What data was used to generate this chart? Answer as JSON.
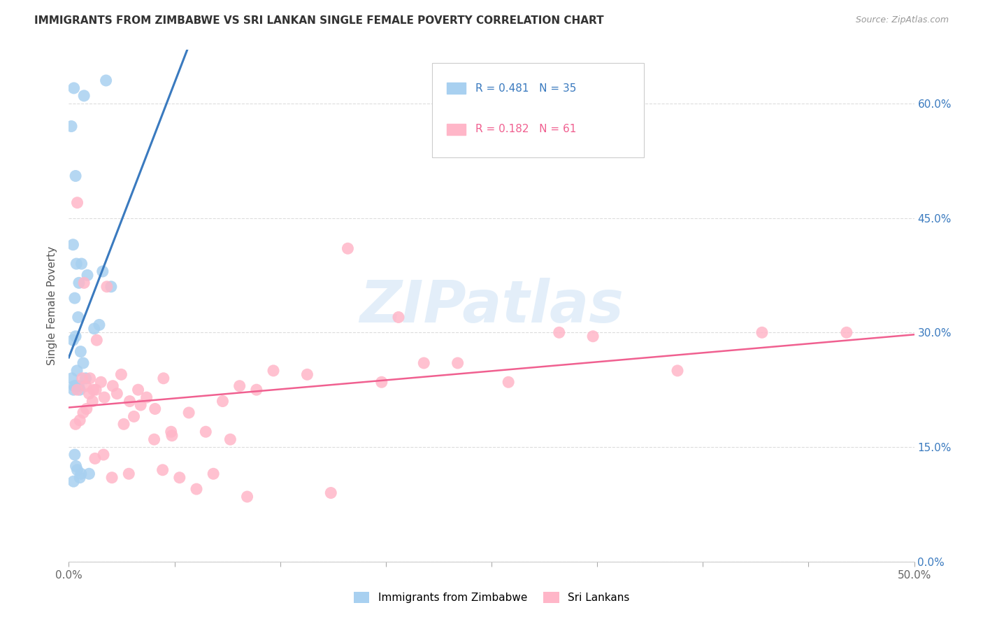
{
  "title": "IMMIGRANTS FROM ZIMBABWE VS SRI LANKAN SINGLE FEMALE POVERTY CORRELATION CHART",
  "source": "Source: ZipAtlas.com",
  "ylabel": "Single Female Poverty",
  "legend_blue_r": "R = 0.481",
  "legend_blue_n": "N = 35",
  "legend_pink_r": "R = 0.182",
  "legend_pink_n": "N = 61",
  "legend_blue_label": "Immigrants from Zimbabwe",
  "legend_pink_label": "Sri Lankans",
  "blue_color": "#a8d0f0",
  "pink_color": "#ffb6c8",
  "blue_line_color": "#3a7abf",
  "pink_line_color": "#f06090",
  "blue_r_color": "#3a7abf",
  "pink_r_color": "#f06090",
  "right_tick_color": "#3a7abf",
  "blue_x": [
    0.15,
    0.3,
    0.9,
    0.4,
    1.1,
    0.25,
    0.45,
    0.6,
    0.75,
    0.35,
    0.25,
    0.4,
    0.55,
    0.7,
    0.85,
    0.18,
    0.32,
    0.48,
    0.65,
    2.0,
    2.5,
    1.5,
    1.8,
    0.28,
    0.42,
    0.58,
    1.0,
    0.35,
    0.5,
    0.72,
    1.2,
    0.28,
    0.42,
    0.65,
    2.2
  ],
  "blue_y": [
    57.0,
    62.0,
    61.0,
    50.5,
    37.5,
    41.5,
    39.0,
    36.5,
    39.0,
    34.5,
    29.0,
    29.5,
    32.0,
    27.5,
    26.0,
    24.0,
    23.0,
    25.0,
    22.5,
    38.0,
    36.0,
    30.5,
    31.0,
    22.5,
    23.0,
    23.0,
    24.0,
    14.0,
    12.0,
    11.5,
    11.5,
    10.5,
    12.5,
    11.0,
    63.0
  ],
  "pink_x": [
    0.5,
    0.8,
    1.0,
    1.2,
    1.4,
    1.6,
    1.9,
    2.1,
    2.6,
    3.1,
    3.6,
    4.1,
    4.6,
    5.1,
    5.6,
    6.1,
    7.1,
    8.1,
    9.1,
    10.1,
    11.1,
    12.1,
    14.1,
    16.5,
    18.5,
    21.0,
    23.0,
    26.0,
    29.0,
    31.0,
    36.0,
    41.0,
    46.0,
    0.4,
    0.65,
    0.85,
    1.05,
    1.25,
    1.45,
    1.65,
    2.25,
    2.85,
    3.25,
    3.85,
    4.25,
    5.55,
    6.55,
    7.55,
    9.55,
    0.5,
    0.9,
    1.55,
    2.05,
    2.55,
    3.55,
    5.05,
    6.05,
    8.55,
    10.55,
    15.5,
    19.5
  ],
  "pink_y": [
    22.5,
    24.0,
    23.0,
    22.0,
    21.0,
    22.5,
    23.5,
    21.5,
    23.0,
    24.5,
    21.0,
    22.5,
    21.5,
    20.0,
    24.0,
    16.5,
    19.5,
    17.0,
    21.0,
    23.0,
    22.5,
    25.0,
    24.5,
    41.0,
    23.5,
    26.0,
    26.0,
    23.5,
    30.0,
    29.5,
    25.0,
    30.0,
    30.0,
    18.0,
    18.5,
    19.5,
    20.0,
    24.0,
    22.5,
    29.0,
    36.0,
    22.0,
    18.0,
    19.0,
    20.5,
    12.0,
    11.0,
    9.5,
    16.0,
    47.0,
    36.5,
    13.5,
    14.0,
    11.0,
    11.5,
    16.0,
    17.0,
    11.5,
    8.5,
    9.0,
    32.0
  ],
  "xlim": [
    0.0,
    50.0
  ],
  "ylim": [
    0.0,
    67.0
  ],
  "xticks": [
    0,
    6.25,
    12.5,
    18.75,
    25.0,
    31.25,
    37.5,
    43.75,
    50.0
  ],
  "yticks": [
    0,
    15,
    30,
    45,
    60
  ],
  "figsize": [
    14.06,
    8.92
  ],
  "dpi": 100,
  "watermark_text": "ZIPatlas",
  "watermark_color": "#c8dff5",
  "background_color": "#ffffff",
  "grid_color": "#dddddd"
}
